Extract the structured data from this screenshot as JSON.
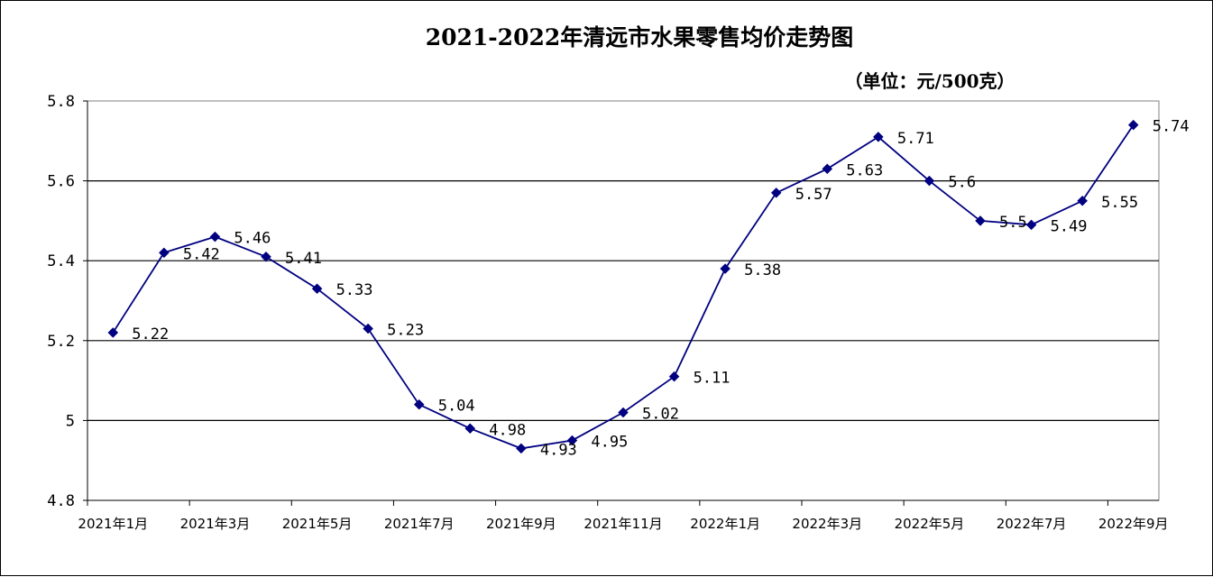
{
  "chart_data": {
    "type": "line",
    "title": "2021-2022年清远市水果零售均价走势图",
    "unit_label": "（单位：元/500克）",
    "ylim": [
      4.8,
      5.8
    ],
    "yticks": [
      "4.8",
      "5",
      "5.2",
      "5.4",
      "5.6",
      "5.8"
    ],
    "grid": true,
    "legend": "none",
    "x_tick_labels": [
      "2021年1月",
      "2021年3月",
      "2021年5月",
      "2021年7月",
      "2021年9月",
      "2021年11月",
      "2022年1月",
      "2022年3月",
      "2022年5月",
      "2022年7月",
      "2022年9月"
    ],
    "values": [
      5.22,
      5.42,
      5.46,
      5.41,
      5.33,
      5.23,
      5.04,
      4.98,
      4.93,
      4.95,
      5.02,
      5.11,
      5.38,
      5.57,
      5.63,
      5.71,
      5.6,
      5.5,
      5.49,
      5.55,
      5.74
    ],
    "data_labels": [
      "5.22",
      "5.42",
      "5.46",
      "5.41",
      "5.33",
      "5.23",
      "5.04",
      "4.98",
      "4.93",
      "4.95",
      "5.02",
      "5.11",
      "5.38",
      "5.57",
      "5.63",
      "5.71",
      "5.6",
      "5.5",
      "5.49",
      "5.55",
      "5.74"
    ],
    "line_color": "#000080",
    "marker": "diamond"
  }
}
